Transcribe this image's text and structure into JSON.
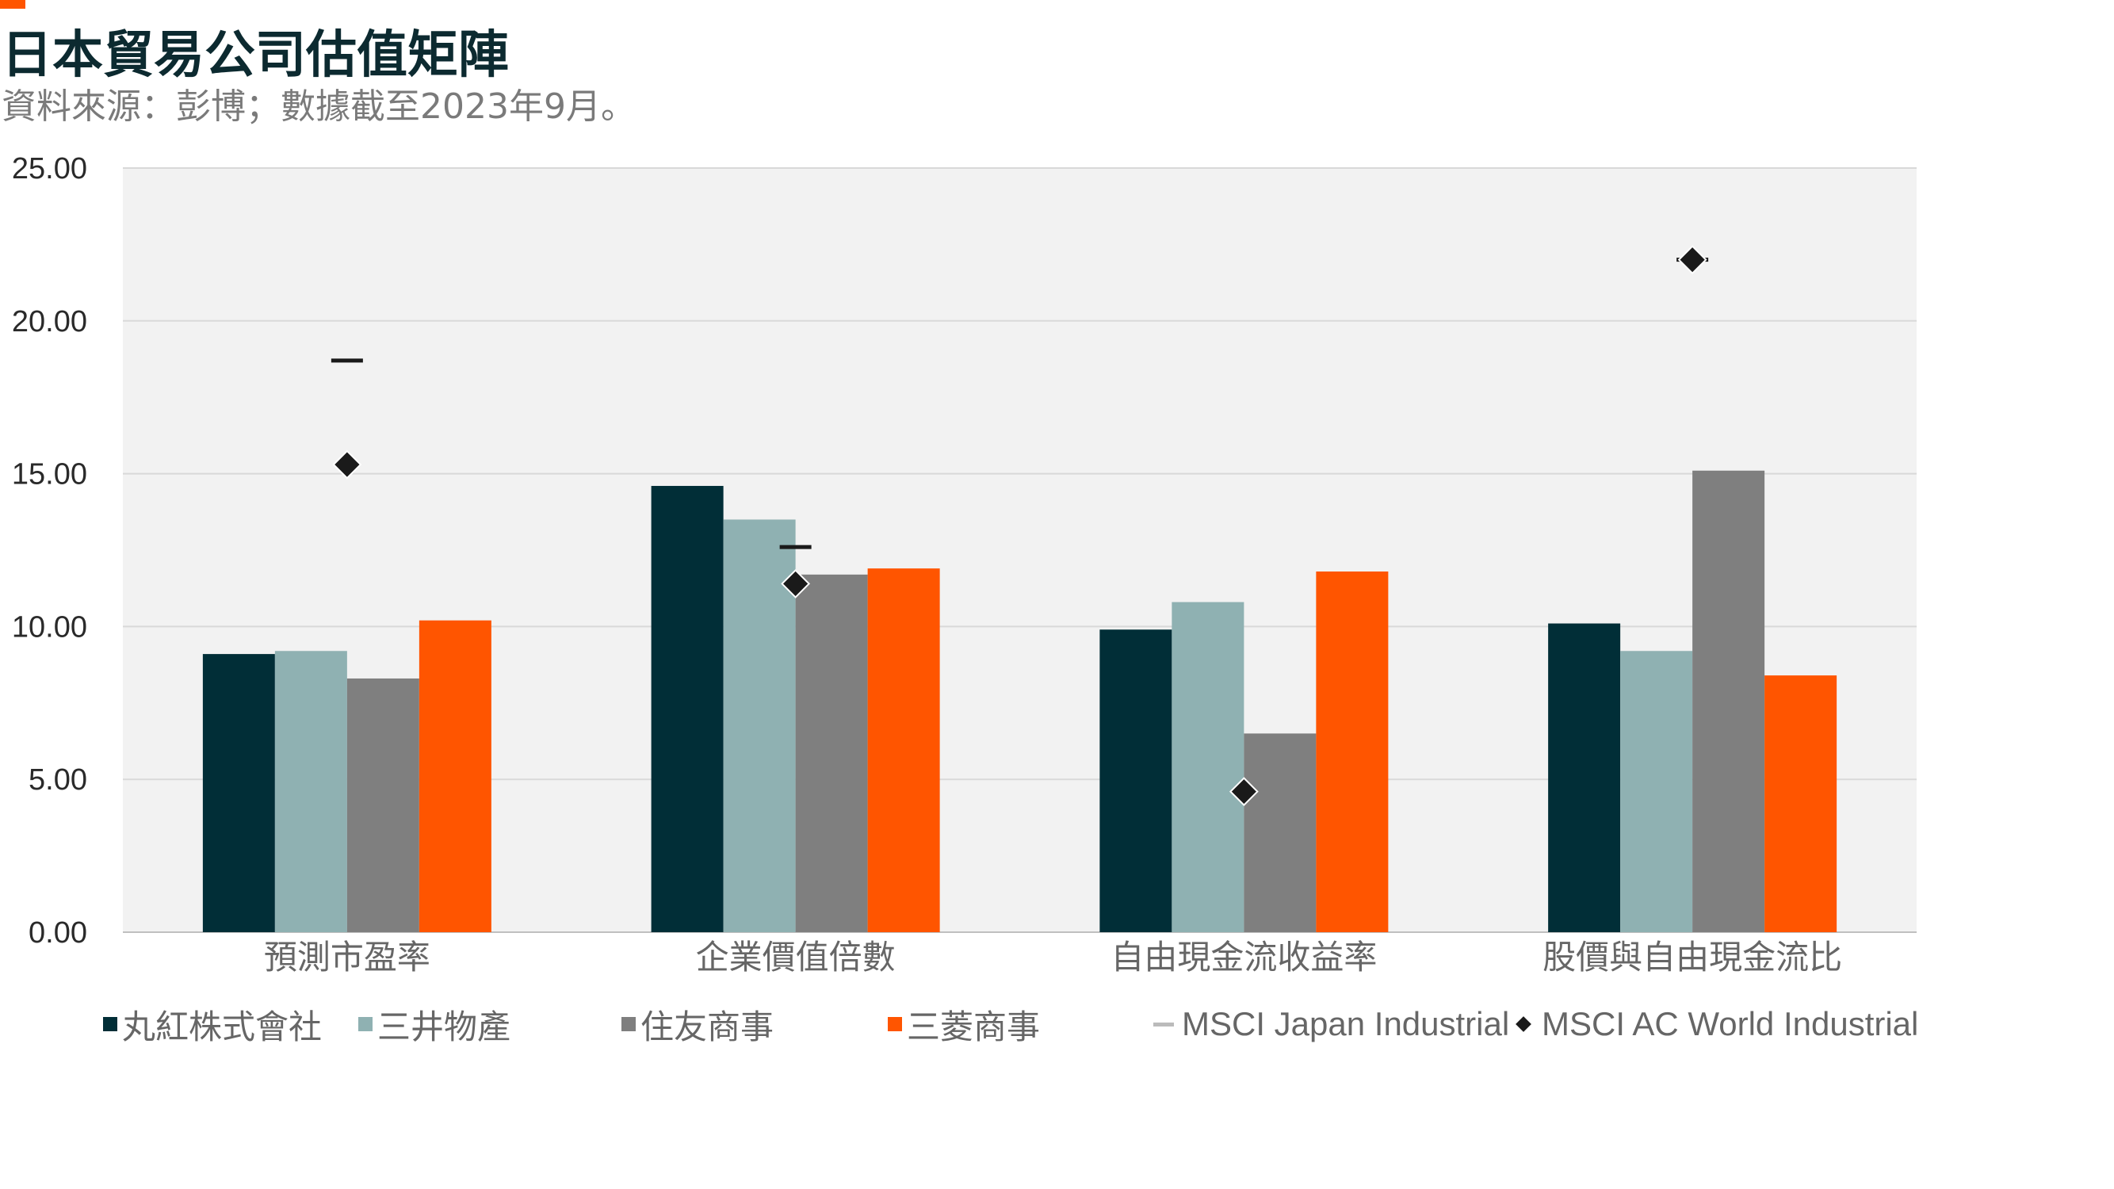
{
  "header": {
    "title": "日本貿易公司估值矩陣",
    "subtitle": "資料來源：彭博；數據截至2023年9月。"
  },
  "colors": {
    "accent": "#ff5500",
    "plot_background": "#f2f2f2",
    "gridline": "#d9d9d9"
  },
  "chart_data": {
    "type": "bar",
    "title": "日本貿易公司估值矩陣",
    "xlabel": "",
    "ylabel": "",
    "ylim": [
      0,
      25
    ],
    "yticks": [
      "0.00",
      "5.00",
      "10.00",
      "15.00",
      "20.00",
      "25.00"
    ],
    "grid": true,
    "legend_position": "bottom",
    "categories": [
      "預測市盈率",
      "企業價值倍數",
      "自由現金流收益率",
      "股價與自由現金流比"
    ],
    "series": [
      {
        "name": "丸紅株式會社",
        "type": "bar",
        "color": "#012e37",
        "values": [
          9.1,
          14.6,
          9.9,
          10.1
        ]
      },
      {
        "name": "三井物產",
        "type": "bar",
        "color": "#8fb1b2",
        "values": [
          9.2,
          13.5,
          10.8,
          9.2
        ]
      },
      {
        "name": "住友商事",
        "type": "bar",
        "color": "#7f7f7f",
        "values": [
          8.3,
          11.7,
          6.5,
          15.1
        ]
      },
      {
        "name": "三菱商事",
        "type": "bar",
        "color": "#ff5500",
        "values": [
          10.2,
          11.9,
          11.8,
          8.4
        ]
      },
      {
        "name": "MSCI Japan Industrial",
        "type": "dash",
        "color": "#1a1a1a",
        "values": [
          18.7,
          12.6,
          null,
          22.0
        ]
      },
      {
        "name": "MSCI AC World Industrial",
        "type": "diamond",
        "color": "#1a1a1a",
        "values": [
          15.3,
          11.4,
          4.6,
          22.0
        ]
      }
    ]
  }
}
